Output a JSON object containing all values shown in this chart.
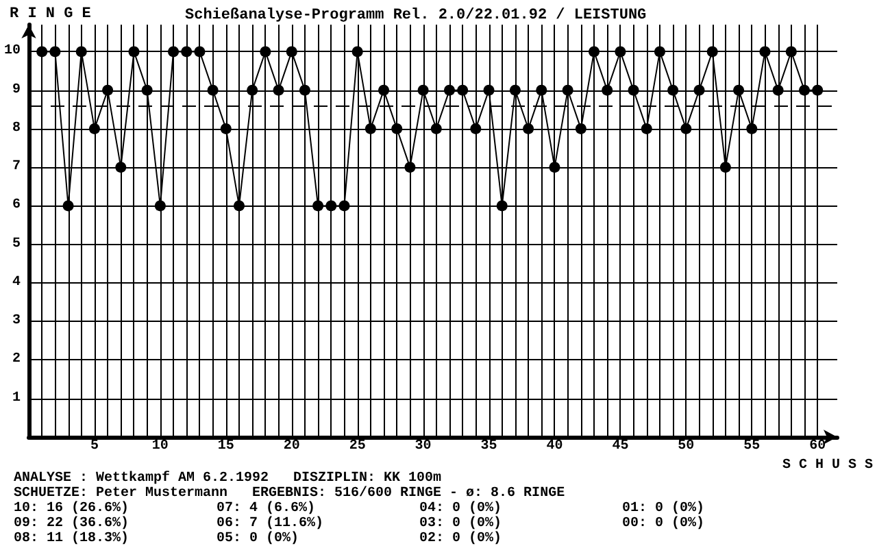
{
  "chart_data": {
    "type": "line",
    "title": "Schießanalyse-Programm Rel. 2.0/22.01.92 / LEISTUNG",
    "xlabel": "S C H U S S",
    "ylabel": "R I N G E",
    "x": [
      1,
      2,
      3,
      4,
      5,
      6,
      7,
      8,
      9,
      10,
      11,
      12,
      13,
      14,
      15,
      16,
      17,
      18,
      19,
      20,
      21,
      22,
      23,
      24,
      25,
      26,
      27,
      28,
      29,
      30,
      31,
      32,
      33,
      34,
      35,
      36,
      37,
      38,
      39,
      40,
      41,
      42,
      43,
      44,
      45,
      46,
      47,
      48,
      49,
      50,
      51,
      52,
      53,
      54,
      55,
      56,
      57,
      58,
      59,
      60
    ],
    "series": [
      {
        "color": "#000000",
        "values": [
          10,
          10,
          6,
          10,
          8,
          9,
          7,
          10,
          9,
          6,
          10,
          10,
          10,
          9,
          8,
          6,
          9,
          10,
          9,
          10,
          9,
          6,
          6,
          6,
          10,
          8,
          9,
          8,
          7,
          9,
          8,
          9,
          9,
          8,
          9,
          6,
          9,
          8,
          9,
          7,
          9,
          8,
          10,
          9,
          10,
          9,
          8,
          10,
          9,
          8,
          9,
          10,
          7,
          9,
          8,
          10,
          9,
          10,
          9,
          9
        ]
      }
    ],
    "xlim": [
      0,
      61.5
    ],
    "xticks": [
      {
        "value": 1,
        "label": null
      },
      {
        "value": 2,
        "label": null
      },
      {
        "value": 3,
        "label": null
      },
      {
        "value": 4,
        "label": null
      },
      5,
      {
        "value": 6,
        "label": null
      },
      {
        "value": 7,
        "label": null
      },
      {
        "value": 8,
        "label": null
      },
      {
        "value": 9,
        "label": null
      },
      10,
      {
        "value": 11,
        "label": null
      },
      {
        "value": 12,
        "label": null
      },
      {
        "value": 13,
        "label": null
      },
      {
        "value": 14,
        "label": null
      },
      15,
      {
        "value": 16,
        "label": null
      },
      {
        "value": 17,
        "label": null
      },
      {
        "value": 18,
        "label": null
      },
      {
        "value": 19,
        "label": null
      },
      20,
      {
        "value": 21,
        "label": null
      },
      {
        "value": 22,
        "label": null
      },
      {
        "value": 23,
        "label": null
      },
      {
        "value": 24,
        "label": null
      },
      25,
      {
        "value": 26,
        "label": null
      },
      {
        "value": 27,
        "label": null
      },
      {
        "value": 28,
        "label": null
      },
      {
        "value": 29,
        "label": null
      },
      30,
      {
        "value": 31,
        "label": null
      },
      {
        "value": 32,
        "label": null
      },
      {
        "value": 33,
        "label": null
      },
      {
        "value": 34,
        "label": null
      },
      35,
      {
        "value": 36,
        "label": null
      },
      {
        "value": 37,
        "label": null
      },
      {
        "value": 38,
        "label": null
      },
      {
        "value": 39,
        "label": null
      },
      40,
      {
        "value": 41,
        "label": null
      },
      {
        "value": 42,
        "label": null
      },
      {
        "value": 43,
        "label": null
      },
      {
        "value": 44,
        "label": null
      },
      45,
      {
        "value": 46,
        "label": null
      },
      {
        "value": 47,
        "label": null
      },
      {
        "value": 48,
        "label": null
      },
      {
        "value": 49,
        "label": null
      },
      50,
      {
        "value": 51,
        "label": null
      },
      {
        "value": 52,
        "label": null
      },
      {
        "value": 53,
        "label": null
      },
      {
        "value": 54,
        "label": null
      },
      55,
      {
        "value": 56,
        "label": null
      },
      {
        "value": 57,
        "label": null
      },
      {
        "value": 58,
        "label": null
      },
      {
        "value": 59,
        "label": null
      },
      60
    ],
    "ylim": [
      0,
      10.7
    ],
    "yticks": [
      1,
      2,
      3,
      4,
      5,
      6,
      7,
      8,
      9,
      10
    ],
    "grid": true,
    "marker": "circle",
    "line_style": "solid",
    "ref_lines": [
      {
        "axis": "y",
        "value": 8.6,
        "line_style": "dashed",
        "color": "#000000"
      }
    ],
    "annotations": [
      "ANALYSE : Wettkampf AM 6.2.1992   DISZIPLIN: KK 100m",
      "SCHUETZE: Peter Mustermann   ERGEBNIS: 516/600 RINGE - ø: 8.6 RINGE",
      "10: 16 (26.6%)",
      "09: 22 (36.6%)",
      "08: 11 (18.3%)",
      "07: 4 (6.6%)",
      "06: 7 (11.6%)",
      "05: 0 (0%)",
      "04: 0 (0%)",
      "03: 0 (0%)",
      "02: 0 (0%)",
      "01: 0 (0%)",
      "00: 0 (0%)"
    ]
  }
}
